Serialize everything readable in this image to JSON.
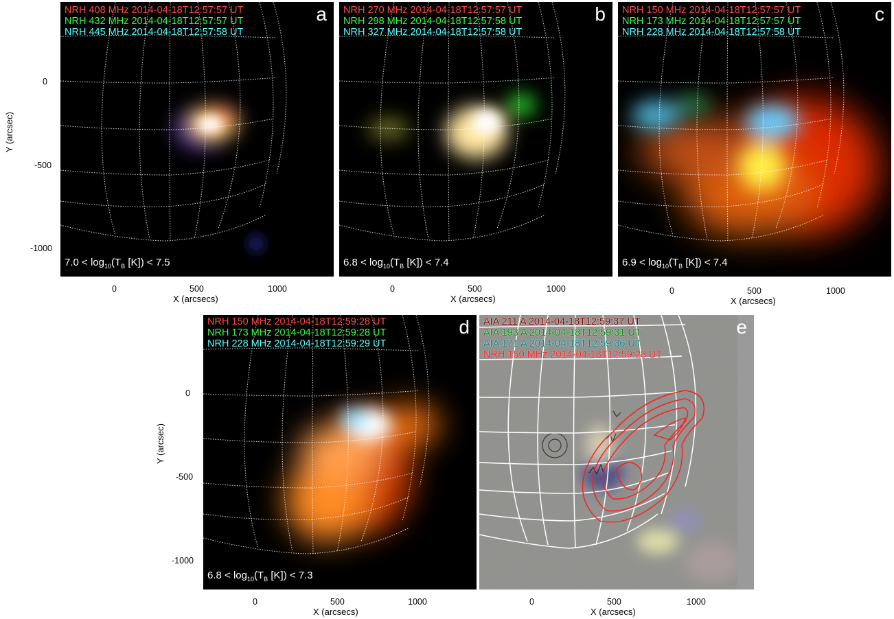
{
  "panels": {
    "a": {
      "letter": "a",
      "lines": [
        "NRH 408 MHz 2014-04-18T12:57:57 UT",
        "NRH 432 MHz 2014-04-18T12:57:57 UT",
        "NRH 445 MHz 2014-04-18T12:57:58 UT"
      ],
      "range": "7.0 < log10(TB [K]) < 7.5",
      "range_lo": "7.0",
      "range_hi": "7.5"
    },
    "b": {
      "letter": "b",
      "lines": [
        "NRH 270 MHz 2014-04-18T12:57:57 UT",
        "NRH 298 MHz 2014-04-18T12:57:58 UT",
        "NRH 327 MHz 2014-04-18T12:57:58 UT"
      ],
      "range_lo": "6.8",
      "range_hi": "7.4"
    },
    "c": {
      "letter": "c",
      "lines": [
        "NRH 150 MHz 2014-04-18T12:57:57 UT",
        "NRH 173 MHz 2014-04-18T12:57:57 UT",
        "NRH 228 MHz 2014-04-18T12:57:58 UT"
      ],
      "range_lo": "6.9",
      "range_hi": "7.4"
    },
    "d": {
      "letter": "d",
      "lines": [
        "NRH 150 MHz 2014-04-18T12:59:28 UT",
        "NRH 173 MHz 2014-04-18T12:59:28 UT",
        "NRH 228 MHz 2014-04-18T12:59:29 UT"
      ],
      "range_lo": "6.8",
      "range_hi": "7.3"
    },
    "e": {
      "letter": "e",
      "lines": [
        "AIA 211 A 2014-04-18T12:59:37 UT",
        "AIA 193 A 2014-04-18T12:59:31 UT",
        "AIA 171 A 2014-04-18T12:59:36 UT",
        "NRH 150 MHz 2014-04-18T12:59:28 UT"
      ]
    }
  },
  "axes": {
    "xlabel": "X (arcsecs)",
    "ylabel": "Y (arcsec)",
    "xticks": [
      "0",
      "500",
      "1000"
    ],
    "yticks": [
      "0",
      "-500",
      "-1000"
    ]
  },
  "colors": {
    "red_channel": "#ff4a4a",
    "green_channel": "#39ff39",
    "blue_channel": "#55ffff",
    "contour": "#ff2020",
    "grid": "#ffffff"
  }
}
